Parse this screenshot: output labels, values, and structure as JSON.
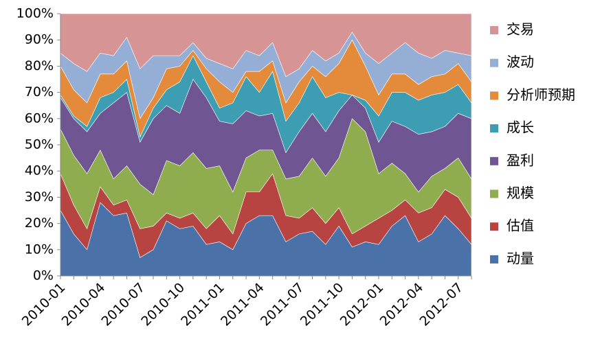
{
  "chart_data": {
    "type": "area",
    "stacked": true,
    "categories": [
      "2010-01",
      null,
      null,
      "2010-04",
      null,
      null,
      "2010-07",
      null,
      null,
      "2010-10",
      null,
      null,
      "2011-01",
      null,
      null,
      "2011-04",
      null,
      null,
      "2011-07",
      null,
      null,
      "2011-10",
      null,
      null,
      "2012-01",
      null,
      null,
      "2012-04",
      null,
      null,
      "2012-07",
      null
    ],
    "ylim": [
      0,
      100
    ],
    "yticks": [
      {
        "value": 0,
        "label": "0%"
      },
      {
        "value": 10,
        "label": "10%"
      },
      {
        "value": 20,
        "label": "20%"
      },
      {
        "value": 30,
        "label": "30%"
      },
      {
        "value": 40,
        "label": "40%"
      },
      {
        "value": 50,
        "label": "50%"
      },
      {
        "value": 60,
        "label": "60%"
      },
      {
        "value": 70,
        "label": "70%"
      },
      {
        "value": 80,
        "label": "80%"
      },
      {
        "value": 90,
        "label": "90%"
      },
      {
        "value": 100,
        "label": "100%"
      }
    ],
    "legend": "right",
    "series": [
      {
        "name": "动量",
        "color": "#4a72a8",
        "values": [
          25,
          16,
          10,
          28,
          23,
          24,
          7,
          10,
          21,
          18,
          19,
          12,
          13,
          10,
          20,
          23,
          23,
          13,
          16,
          17,
          12,
          19,
          11,
          13,
          12,
          19,
          23,
          13,
          16,
          23,
          18,
          12
        ]
      },
      {
        "name": "估值",
        "color": "#b84441",
        "values": [
          14,
          11,
          8,
          6,
          4,
          5,
          11,
          9,
          3,
          4,
          5,
          6,
          10,
          6,
          12,
          9,
          16,
          10,
          6,
          9,
          8,
          7,
          5,
          6,
          10,
          6,
          6,
          11,
          10,
          10,
          12,
          10
        ]
      },
      {
        "name": "规模",
        "color": "#8fac4f",
        "values": [
          17,
          19,
          21,
          14,
          10,
          13,
          17,
          12,
          20,
          20,
          23,
          23,
          19,
          16,
          13,
          16,
          9,
          14,
          16,
          19,
          18,
          19,
          44,
          36,
          17,
          18,
          10,
          8,
          12,
          8,
          15,
          15
        ]
      },
      {
        "name": "盈利",
        "color": "#705593",
        "values": [
          12,
          14,
          16,
          14,
          29,
          28,
          16,
          29,
          21,
          20,
          28,
          27,
          17,
          26,
          18,
          13,
          14,
          10,
          17,
          17,
          17,
          18,
          9,
          9,
          12,
          16,
          18,
          22,
          17,
          16,
          17,
          23
        ]
      },
      {
        "name": "成长",
        "color": "#3d9eb3",
        "values": [
          1,
          1,
          2,
          6,
          4,
          5,
          2,
          4,
          6,
          12,
          9,
          6,
          5,
          8,
          13,
          9,
          16,
          12,
          11,
          14,
          13,
          7,
          0,
          3,
          10,
          11,
          13,
          13,
          14,
          13,
          11,
          6
        ]
      },
      {
        "name": "分析师预期",
        "color": "#e48b3b",
        "values": [
          11,
          10,
          9,
          9,
          7,
          7,
          7,
          4,
          8,
          6,
          2,
          5,
          10,
          4,
          2,
          8,
          4,
          7,
          8,
          4,
          8,
          11,
          21,
          13,
          8,
          7,
          7,
          6,
          7,
          7,
          8,
          8
        ]
      },
      {
        "name": "波动",
        "color": "#95aed5",
        "values": [
          5,
          10,
          12,
          8,
          7,
          9,
          19,
          16,
          5,
          4,
          3,
          4,
          7,
          9,
          8,
          6,
          7,
          10,
          5,
          6,
          6,
          4,
          3,
          5,
          12,
          8,
          12,
          12,
          7,
          9,
          4,
          10
        ]
      },
      {
        "name": "交易",
        "color": "#d69594",
        "values": [
          15,
          19,
          22,
          15,
          16,
          9,
          21,
          16,
          16,
          16,
          11,
          17,
          19,
          21,
          14,
          16,
          11,
          24,
          21,
          14,
          18,
          15,
          7,
          15,
          19,
          15,
          11,
          15,
          17,
          14,
          15,
          16
        ]
      }
    ]
  }
}
